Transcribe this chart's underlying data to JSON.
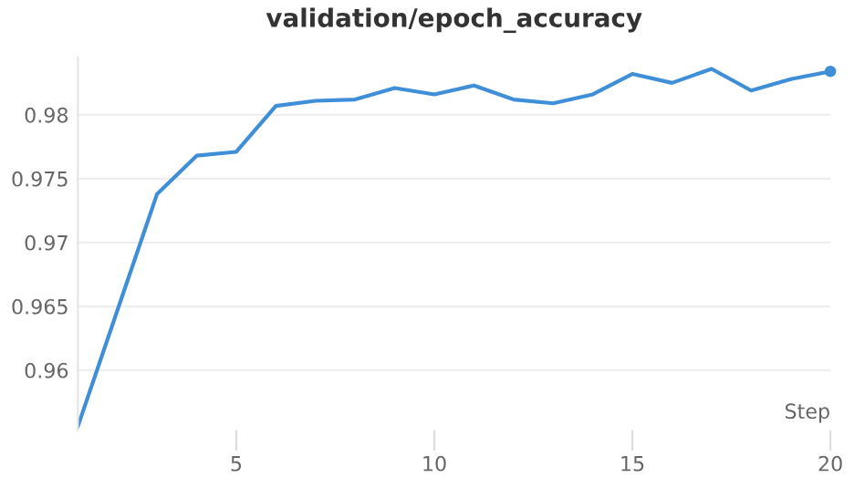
{
  "chart_data": {
    "type": "line",
    "title": "validation/epoch_accuracy",
    "xlabel": "Step",
    "x": [
      1,
      2,
      3,
      4,
      5,
      6,
      7,
      8,
      9,
      10,
      11,
      12,
      13,
      14,
      15,
      16,
      17,
      18,
      19,
      20
    ],
    "series": [
      {
        "color": "#3f8fd8",
        "values": [
          0.9556,
          0.9647,
          0.9738,
          0.9768,
          0.9771,
          0.9807,
          0.9811,
          0.9812,
          0.9821,
          0.9816,
          0.9823,
          0.9812,
          0.9809,
          0.9816,
          0.9832,
          0.9825,
          0.9836,
          0.9819,
          0.9828,
          0.9834
        ]
      }
    ],
    "xlim": [
      1,
      20
    ],
    "ylim": [
      0.9553,
      0.9845
    ],
    "xticks": [
      5,
      10,
      15,
      20
    ],
    "yticks": [
      0.96,
      0.965,
      0.97,
      0.975,
      0.98
    ],
    "grid": "y"
  }
}
